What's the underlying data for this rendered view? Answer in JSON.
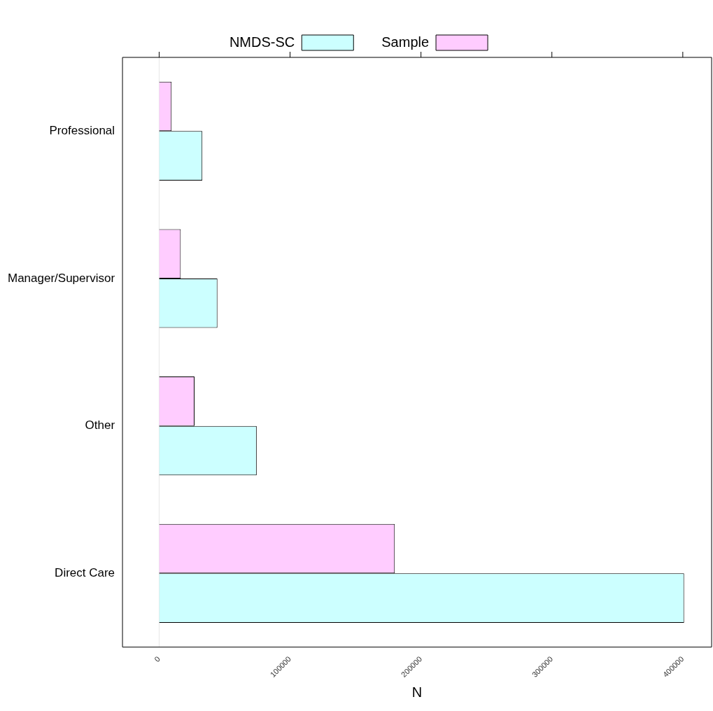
{
  "chart_data": {
    "type": "bar",
    "orientation": "horizontal",
    "xlabel": "N",
    "categories": [
      "Professional",
      "Manager/Supervisor",
      "Other",
      "Direct Care"
    ],
    "series": [
      {
        "name": "NMDS-SC",
        "color": "#ccffff",
        "values": [
          33000,
          44500,
          74500,
          401000
        ]
      },
      {
        "name": "Sample",
        "color": "#ffccff",
        "values": [
          9500,
          16500,
          27000,
          180000
        ]
      }
    ],
    "xlim": [
      -28000,
      422000
    ],
    "xticks": [
      0,
      100000,
      200000,
      300000,
      400000
    ],
    "ref_lines": [
      {
        "axis": "x",
        "value": 0,
        "color": "#e6e6e6"
      }
    ],
    "grid": false,
    "legend": "top"
  }
}
